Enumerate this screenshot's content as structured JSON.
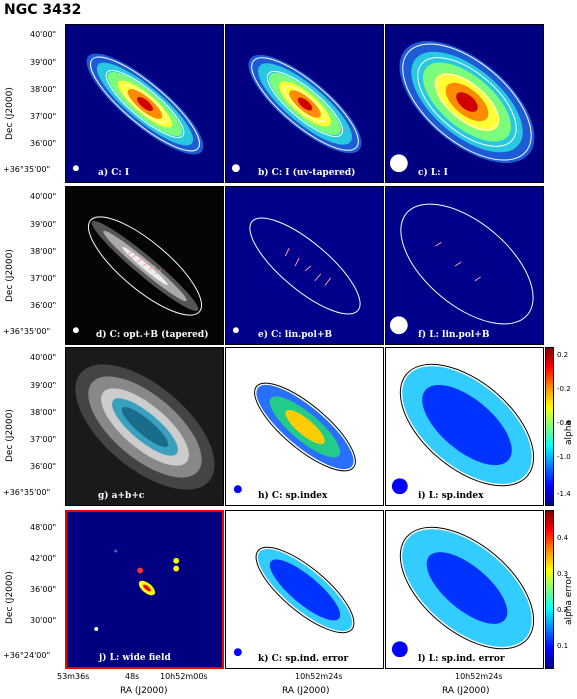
{
  "title": "NGC 3432",
  "ylabel": "Dec (J2000)",
  "xlabel": "RA (J2000)",
  "rows": [
    {
      "yticks": [
        "40'00\"",
        "39'00\"",
        "38'00\"",
        "37'00\"",
        "36'00\"",
        "+36°35'00\""
      ]
    },
    {
      "yticks": [
        "40'00\"",
        "39'00\"",
        "38'00\"",
        "37'00\"",
        "36'00\"",
        "+36°35'00\""
      ]
    },
    {
      "yticks": [
        "40'00\"",
        "39'00\"",
        "38'00\"",
        "37'00\"",
        "36'00\"",
        "+36°35'00\""
      ]
    },
    {
      "yticks": [
        "48'00\"",
        "42'00\"",
        "36'00\"",
        "30'00\"",
        "+36°24'00\""
      ]
    }
  ],
  "panels": [
    {
      "label": "a) C: I"
    },
    {
      "label": "b) C: I (uv-tapered)"
    },
    {
      "label": "c) L: I"
    },
    {
      "label": "d) C: opt.+B (tapered)"
    },
    {
      "label": "e) C: lin.pol+B"
    },
    {
      "label": "f) L: lin.pol+B"
    },
    {
      "label": "g) a+b+c"
    },
    {
      "label": "h) C: sp.index"
    },
    {
      "label": "i) L: sp.index"
    },
    {
      "label": "j) L: wide field"
    },
    {
      "label": "k) C: sp.ind. error"
    },
    {
      "label": "l) L: sp.ind. error"
    }
  ],
  "xticks": {
    "col1": [
      "53m36s",
      "48s",
      "10h52m00s"
    ],
    "col2": [
      "10h52m24s"
    ],
    "col3": [
      "10h52m24s"
    ]
  },
  "colorbars": [
    {
      "label": "alpha",
      "ticks": [
        "0.2",
        "-0.2",
        "-0.6",
        "-1.0",
        "-1.4"
      ]
    },
    {
      "label": "alpha error",
      "ticks": [
        "0.4",
        "0.3",
        "0.2",
        "0.1"
      ]
    }
  ]
}
